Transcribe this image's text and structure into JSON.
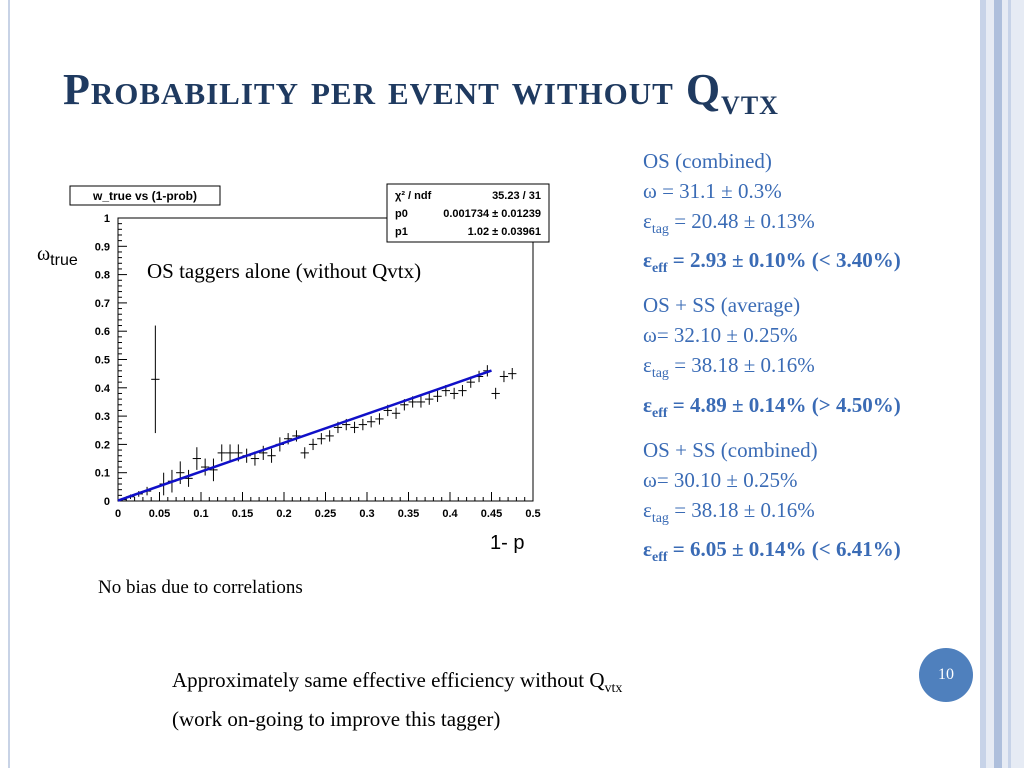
{
  "slide": {
    "title": "Probability per event without Q",
    "title_sub": "VTX",
    "page_number": "10",
    "annotation": "OS taggers alone (without Qvtx)",
    "no_bias": "No bias due to correlations",
    "bottom_line1": "Approximately same effective efficiency without Q",
    "bottom_line1_sub": "vtx",
    "bottom_line2": "(work on-going to improve this tagger)",
    "y_axis_symbol": "ω",
    "y_axis_sub": "true",
    "x_axis_title": "1- p"
  },
  "stats": [
    {
      "header": "OS (combined)",
      "omega": "ω = 31.1 ± 0.3%",
      "tag_sym": "ε",
      "tag_sub": "tag",
      "tag_val": " = 20.48 ± 0.13%",
      "eff_sym": "ε",
      "eff_sub": "eff",
      "eff_val": " = 2.93 ± 0.10%  (< 3.40%)"
    },
    {
      "header": "OS + SS (average)",
      "omega": "ω= 32.10 ± 0.25%",
      "tag_sym": "ε",
      "tag_sub": "tag",
      "tag_val": " = 38.18 ± 0.16%",
      "eff_sym": "ε",
      "eff_sub": "eff",
      "eff_val": " = 4.89 ± 0.14% (> 4.50%)"
    },
    {
      "header": "OS + SS (combined)",
      "omega": "ω= 30.10 ± 0.25%",
      "tag_sym": "ε",
      "tag_sub": "tag",
      "tag_val": " = 38.18 ± 0.16%",
      "eff_sym": "ε",
      "eff_sub": "eff",
      "eff_val": " = 6.05 ± 0.14% (< 6.41%)"
    }
  ],
  "colors": {
    "title": "#1f3a60",
    "stats_text": "#3a6bb5",
    "fit_line": "#1010c8",
    "page_badge": "#4f80bd"
  },
  "chart_data": {
    "type": "scatter",
    "title": "w_true vs (1-prob)",
    "xlabel": "1- p",
    "ylabel": "ωtrue",
    "xlim": [
      0,
      0.5
    ],
    "ylim": [
      0,
      1
    ],
    "x_ticks": [
      "0",
      "0.05",
      "0.1",
      "0.15",
      "0.2",
      "0.25",
      "0.3",
      "0.35",
      "0.4",
      "0.45",
      "0.5"
    ],
    "y_ticks": [
      "0",
      "0.1",
      "0.2",
      "0.3",
      "0.4",
      "0.5",
      "0.6",
      "0.7",
      "0.8",
      "0.9",
      "1"
    ],
    "fit": {
      "p0": 0.001734,
      "p1": 1.02,
      "x_range": [
        0,
        0.45
      ]
    },
    "stats_box": [
      {
        "label": "χ² / ndf",
        "value": "35.23 / 31"
      },
      {
        "label": "p0",
        "value": "0.001734 ± 0.01239"
      },
      {
        "label": "p1",
        "value": "1.02 ± 0.03961"
      }
    ],
    "series": [
      {
        "points": [
          {
            "x": 0.005,
            "y": 0.005,
            "ex": 0.005,
            "ey": 0.005
          },
          {
            "x": 0.015,
            "y": 0.015,
            "ex": 0.005,
            "ey": 0.008
          },
          {
            "x": 0.025,
            "y": 0.025,
            "ex": 0.005,
            "ey": 0.01
          },
          {
            "x": 0.035,
            "y": 0.035,
            "ex": 0.005,
            "ey": 0.015
          },
          {
            "x": 0.045,
            "y": 0.43,
            "ex": 0.005,
            "ey": 0.19
          },
          {
            "x": 0.055,
            "y": 0.06,
            "ex": 0.005,
            "ey": 0.04
          },
          {
            "x": 0.065,
            "y": 0.07,
            "ex": 0.005,
            "ey": 0.04
          },
          {
            "x": 0.075,
            "y": 0.1,
            "ex": 0.005,
            "ey": 0.04
          },
          {
            "x": 0.085,
            "y": 0.08,
            "ex": 0.005,
            "ey": 0.03
          },
          {
            "x": 0.095,
            "y": 0.15,
            "ex": 0.005,
            "ey": 0.04
          },
          {
            "x": 0.105,
            "y": 0.12,
            "ex": 0.005,
            "ey": 0.03
          },
          {
            "x": 0.115,
            "y": 0.11,
            "ex": 0.005,
            "ey": 0.04
          },
          {
            "x": 0.125,
            "y": 0.17,
            "ex": 0.005,
            "ey": 0.03
          },
          {
            "x": 0.135,
            "y": 0.17,
            "ex": 0.005,
            "ey": 0.03
          },
          {
            "x": 0.145,
            "y": 0.17,
            "ex": 0.005,
            "ey": 0.03
          },
          {
            "x": 0.155,
            "y": 0.16,
            "ex": 0.005,
            "ey": 0.025
          },
          {
            "x": 0.165,
            "y": 0.15,
            "ex": 0.005,
            "ey": 0.025
          },
          {
            "x": 0.175,
            "y": 0.17,
            "ex": 0.005,
            "ey": 0.025
          },
          {
            "x": 0.185,
            "y": 0.16,
            "ex": 0.005,
            "ey": 0.025
          },
          {
            "x": 0.195,
            "y": 0.2,
            "ex": 0.005,
            "ey": 0.025
          },
          {
            "x": 0.205,
            "y": 0.22,
            "ex": 0.005,
            "ey": 0.02
          },
          {
            "x": 0.215,
            "y": 0.23,
            "ex": 0.005,
            "ey": 0.02
          },
          {
            "x": 0.225,
            "y": 0.17,
            "ex": 0.005,
            "ey": 0.02
          },
          {
            "x": 0.235,
            "y": 0.2,
            "ex": 0.005,
            "ey": 0.02
          },
          {
            "x": 0.245,
            "y": 0.22,
            "ex": 0.005,
            "ey": 0.02
          },
          {
            "x": 0.255,
            "y": 0.23,
            "ex": 0.005,
            "ey": 0.02
          },
          {
            "x": 0.265,
            "y": 0.26,
            "ex": 0.005,
            "ey": 0.02
          },
          {
            "x": 0.275,
            "y": 0.27,
            "ex": 0.005,
            "ey": 0.02
          },
          {
            "x": 0.285,
            "y": 0.26,
            "ex": 0.005,
            "ey": 0.02
          },
          {
            "x": 0.295,
            "y": 0.27,
            "ex": 0.005,
            "ey": 0.02
          },
          {
            "x": 0.305,
            "y": 0.28,
            "ex": 0.005,
            "ey": 0.02
          },
          {
            "x": 0.315,
            "y": 0.29,
            "ex": 0.005,
            "ey": 0.02
          },
          {
            "x": 0.325,
            "y": 0.32,
            "ex": 0.005,
            "ey": 0.02
          },
          {
            "x": 0.335,
            "y": 0.31,
            "ex": 0.005,
            "ey": 0.02
          },
          {
            "x": 0.345,
            "y": 0.34,
            "ex": 0.005,
            "ey": 0.02
          },
          {
            "x": 0.355,
            "y": 0.35,
            "ex": 0.005,
            "ey": 0.02
          },
          {
            "x": 0.365,
            "y": 0.35,
            "ex": 0.005,
            "ey": 0.02
          },
          {
            "x": 0.375,
            "y": 0.36,
            "ex": 0.005,
            "ey": 0.02
          },
          {
            "x": 0.385,
            "y": 0.37,
            "ex": 0.005,
            "ey": 0.02
          },
          {
            "x": 0.395,
            "y": 0.39,
            "ex": 0.005,
            "ey": 0.02
          },
          {
            "x": 0.405,
            "y": 0.38,
            "ex": 0.005,
            "ey": 0.02
          },
          {
            "x": 0.415,
            "y": 0.39,
            "ex": 0.005,
            "ey": 0.02
          },
          {
            "x": 0.425,
            "y": 0.42,
            "ex": 0.005,
            "ey": 0.02
          },
          {
            "x": 0.435,
            "y": 0.44,
            "ex": 0.005,
            "ey": 0.02
          },
          {
            "x": 0.445,
            "y": 0.46,
            "ex": 0.005,
            "ey": 0.02
          },
          {
            "x": 0.455,
            "y": 0.38,
            "ex": 0.005,
            "ey": 0.02
          },
          {
            "x": 0.465,
            "y": 0.44,
            "ex": 0.005,
            "ey": 0.02
          },
          {
            "x": 0.475,
            "y": 0.45,
            "ex": 0.005,
            "ey": 0.02
          }
        ]
      }
    ],
    "grid": false,
    "legend": "none"
  }
}
